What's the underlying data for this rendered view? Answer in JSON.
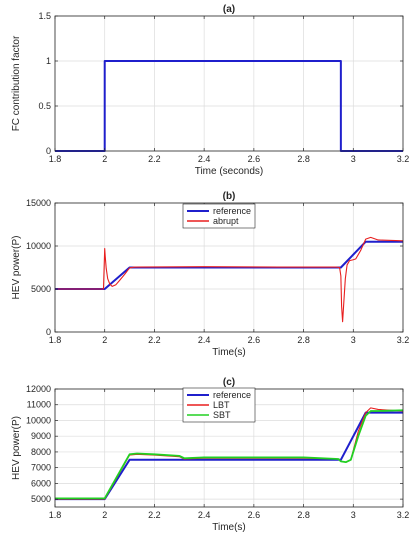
{
  "chart_data": [
    {
      "type": "line",
      "title": "(a)",
      "xlabel": "Time (seconds)",
      "ylabel": "FC contribution factor",
      "xlim": [
        1.8,
        3.2
      ],
      "ylim": [
        0,
        1.5
      ],
      "xticks": [
        1.8,
        2,
        2.2,
        2.4,
        2.6,
        2.8,
        3,
        3.2
      ],
      "yticks": [
        0,
        0.5,
        1,
        1.5
      ],
      "grid": true,
      "legend": null,
      "series": [
        {
          "name": "",
          "color": "#1f1fcc",
          "x": [
            1.8,
            2.0,
            2.0,
            2.95,
            2.95,
            3.2
          ],
          "y": [
            0,
            0,
            1,
            1,
            0,
            0
          ]
        }
      ]
    },
    {
      "type": "line",
      "title": "(b)",
      "xlabel": "Time(s)",
      "ylabel": "HEV power(P)",
      "xlim": [
        1.8,
        3.2
      ],
      "ylim": [
        0,
        15000
      ],
      "xticks": [
        1.8,
        2,
        2.2,
        2.4,
        2.6,
        2.8,
        3,
        3.2
      ],
      "yticks": [
        0,
        5000,
        10000,
        15000
      ],
      "grid": true,
      "legend": "top-center",
      "series": [
        {
          "name": "reference",
          "color": "#1f1fcc",
          "x": [
            1.8,
            2.0,
            2.1,
            2.95,
            3.05,
            3.2
          ],
          "y": [
            5000,
            5000,
            7500,
            7500,
            10500,
            10500
          ]
        },
        {
          "name": "abrupt",
          "color": "#e81f1f",
          "x": [
            1.8,
            1.995,
            2.0,
            2.002,
            2.006,
            2.012,
            2.02,
            2.03,
            2.045,
            2.06,
            2.08,
            2.1,
            2.12,
            2.4,
            2.7,
            2.93,
            2.945,
            2.95,
            2.953,
            2.957,
            2.962,
            2.968,
            2.975,
            2.985,
            3.0,
            3.01,
            3.03,
            3.05,
            3.07,
            3.1,
            3.2
          ],
          "y": [
            5000,
            5000,
            9700,
            8800,
            7400,
            6200,
            5600,
            5300,
            5500,
            6000,
            6700,
            7450,
            7550,
            7600,
            7550,
            7550,
            7500,
            6500,
            3000,
            1200,
            3500,
            6200,
            7800,
            8300,
            8400,
            8500,
            9500,
            10800,
            11000,
            10700,
            10600
          ]
        }
      ]
    },
    {
      "type": "line",
      "title": "(c)",
      "xlabel": "Time(s)",
      "ylabel": "HEV power(P)",
      "xlim": [
        1.8,
        3.2
      ],
      "ylim": [
        4500,
        12000
      ],
      "xticks": [
        1.8,
        2,
        2.2,
        2.4,
        2.6,
        2.8,
        3,
        3.2
      ],
      "yticks": [
        5000,
        6000,
        7000,
        8000,
        9000,
        10000,
        11000,
        12000
      ],
      "grid": true,
      "legend": "top-center",
      "series": [
        {
          "name": "reference",
          "color": "#1f1fcc",
          "x": [
            1.8,
            2.0,
            2.1,
            2.95,
            3.05,
            3.2
          ],
          "y": [
            5000,
            5000,
            7500,
            7500,
            10500,
            10500
          ]
        },
        {
          "name": "LBT",
          "color": "#e81f1f",
          "x": [
            1.8,
            2.0,
            2.1,
            2.13,
            2.2,
            2.3,
            2.32,
            2.4,
            2.6,
            2.8,
            2.94,
            2.95,
            2.97,
            2.99,
            3.02,
            3.05,
            3.07,
            3.1,
            3.2
          ],
          "y": [
            5000,
            5000,
            7800,
            7850,
            7800,
            7700,
            7550,
            7600,
            7600,
            7600,
            7550,
            7400,
            7350,
            7500,
            9300,
            10500,
            10800,
            10700,
            10600
          ]
        },
        {
          "name": "SBT",
          "color": "#22d022",
          "x": [
            1.8,
            2.0,
            2.1,
            2.13,
            2.2,
            2.3,
            2.32,
            2.4,
            2.6,
            2.8,
            2.94,
            2.95,
            2.97,
            2.99,
            3.02,
            3.05,
            3.07,
            3.1,
            3.2
          ],
          "y": [
            5050,
            5050,
            7850,
            7900,
            7850,
            7750,
            7600,
            7650,
            7650,
            7650,
            7550,
            7400,
            7350,
            7500,
            9000,
            10300,
            10600,
            10600,
            10650
          ]
        }
      ]
    }
  ]
}
